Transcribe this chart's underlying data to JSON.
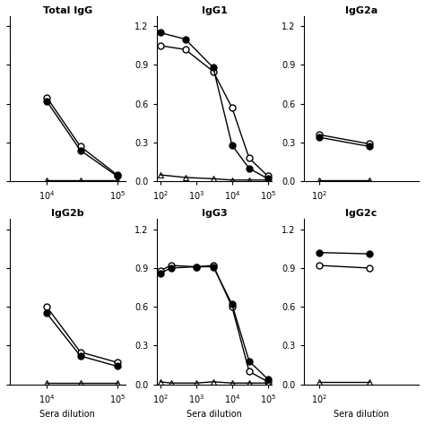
{
  "panels": [
    {
      "title": "Total IgG",
      "row": 0,
      "col": 0,
      "xlim": [
        3000,
        130000
      ],
      "show_ylabel": false,
      "show_xlabel": false,
      "x_ticks": [
        10000,
        100000
      ],
      "x_tick_labels": [
        "10$^4$",
        "10$^5$"
      ],
      "series": [
        {
          "marker": "o",
          "filled": false,
          "x": [
            10000,
            30000,
            100000
          ],
          "y": [
            0.65,
            0.27,
            0.05
          ]
        },
        {
          "marker": "o",
          "filled": true,
          "x": [
            10000,
            30000,
            100000
          ],
          "y": [
            0.62,
            0.24,
            0.04
          ]
        },
        {
          "marker": "^",
          "filled": false,
          "x": [
            10000,
            30000,
            100000
          ],
          "y": [
            0.01,
            0.01,
            0.01
          ]
        }
      ]
    },
    {
      "title": "IgG1",
      "row": 0,
      "col": 1,
      "xlim": [
        80,
        130000
      ],
      "show_ylabel": true,
      "show_xlabel": false,
      "x_ticks": [
        100,
        1000,
        10000,
        100000
      ],
      "x_tick_labels": [
        "10$^2$",
        "10$^3$",
        "10$^4$",
        "10$^5$"
      ],
      "series": [
        {
          "marker": "o",
          "filled": false,
          "x": [
            100,
            500,
            3000,
            10000,
            30000,
            100000
          ],
          "y": [
            1.05,
            1.02,
            0.85,
            0.57,
            0.18,
            0.04
          ]
        },
        {
          "marker": "o",
          "filled": true,
          "x": [
            100,
            500,
            3000,
            10000,
            30000,
            100000
          ],
          "y": [
            1.15,
            1.1,
            0.88,
            0.28,
            0.1,
            0.02
          ]
        },
        {
          "marker": "^",
          "filled": false,
          "x": [
            100,
            500,
            3000,
            10000,
            30000,
            100000
          ],
          "y": [
            0.05,
            0.03,
            0.02,
            0.01,
            0.01,
            0.01
          ]
        }
      ]
    },
    {
      "title": "IgG2a",
      "row": 0,
      "col": 2,
      "xlim": [
        80,
        400
      ],
      "show_ylabel": true,
      "show_xlabel": false,
      "x_ticks": [
        100
      ],
      "x_tick_labels": [
        "10$^2$"
      ],
      "series": [
        {
          "marker": "o",
          "filled": false,
          "x": [
            100,
            200
          ],
          "y": [
            0.36,
            0.29
          ]
        },
        {
          "marker": "o",
          "filled": true,
          "x": [
            100,
            200
          ],
          "y": [
            0.34,
            0.27
          ]
        },
        {
          "marker": "^",
          "filled": false,
          "x": [
            100,
            200
          ],
          "y": [
            0.01,
            0.01
          ]
        }
      ]
    },
    {
      "title": "IgG2b",
      "row": 1,
      "col": 0,
      "xlim": [
        3000,
        130000
      ],
      "show_ylabel": false,
      "show_xlabel": true,
      "x_ticks": [
        10000,
        100000
      ],
      "x_tick_labels": [
        "10$^4$",
        "10$^5$"
      ],
      "series": [
        {
          "marker": "o",
          "filled": false,
          "x": [
            10000,
            30000,
            100000
          ],
          "y": [
            0.6,
            0.25,
            0.17
          ]
        },
        {
          "marker": "o",
          "filled": true,
          "x": [
            10000,
            30000,
            100000
          ],
          "y": [
            0.55,
            0.22,
            0.14
          ]
        },
        {
          "marker": "^",
          "filled": false,
          "x": [
            10000,
            30000,
            100000
          ],
          "y": [
            0.01,
            0.01,
            0.01
          ]
        }
      ]
    },
    {
      "title": "IgG3",
      "row": 1,
      "col": 1,
      "xlim": [
        80,
        130000
      ],
      "show_ylabel": true,
      "show_xlabel": true,
      "x_ticks": [
        100,
        1000,
        10000,
        100000
      ],
      "x_tick_labels": [
        "10$^2$",
        "10$^3$",
        "10$^4$",
        "10$^5$"
      ],
      "series": [
        {
          "marker": "o",
          "filled": false,
          "x": [
            100,
            200,
            1000,
            3000,
            10000,
            30000,
            100000
          ],
          "y": [
            0.88,
            0.92,
            0.91,
            0.92,
            0.6,
            0.1,
            0.02
          ]
        },
        {
          "marker": "o",
          "filled": true,
          "x": [
            100,
            200,
            1000,
            3000,
            10000,
            30000,
            100000
          ],
          "y": [
            0.86,
            0.9,
            0.91,
            0.91,
            0.62,
            0.18,
            0.04
          ]
        },
        {
          "marker": "^",
          "filled": false,
          "x": [
            100,
            200,
            1000,
            3000,
            10000,
            30000,
            100000
          ],
          "y": [
            0.02,
            0.01,
            0.01,
            0.02,
            0.01,
            0.01,
            0.01
          ]
        }
      ]
    },
    {
      "title": "IgG2c",
      "row": 1,
      "col": 2,
      "xlim": [
        80,
        400
      ],
      "show_ylabel": true,
      "show_xlabel": true,
      "x_ticks": [
        100
      ],
      "x_tick_labels": [
        "10$^2$"
      ],
      "series": [
        {
          "marker": "o",
          "filled": false,
          "x": [
            100,
            200
          ],
          "y": [
            0.92,
            0.9
          ]
        },
        {
          "marker": "o",
          "filled": true,
          "x": [
            100,
            200
          ],
          "y": [
            1.02,
            1.01
          ]
        },
        {
          "marker": "^",
          "filled": false,
          "x": [
            100,
            200
          ],
          "y": [
            0.02,
            0.02
          ]
        }
      ]
    }
  ],
  "ylim": [
    0.0,
    1.28
  ],
  "yticks": [
    0.0,
    0.3,
    0.6,
    0.9,
    1.2
  ],
  "ytick_labels": [
    "0.0",
    "0.3",
    "0.6",
    "0.9",
    "1.2"
  ],
  "line_color": "black",
  "bg_color": "white",
  "fontsize_title": 8,
  "fontsize_tick": 7,
  "fontsize_label": 7
}
